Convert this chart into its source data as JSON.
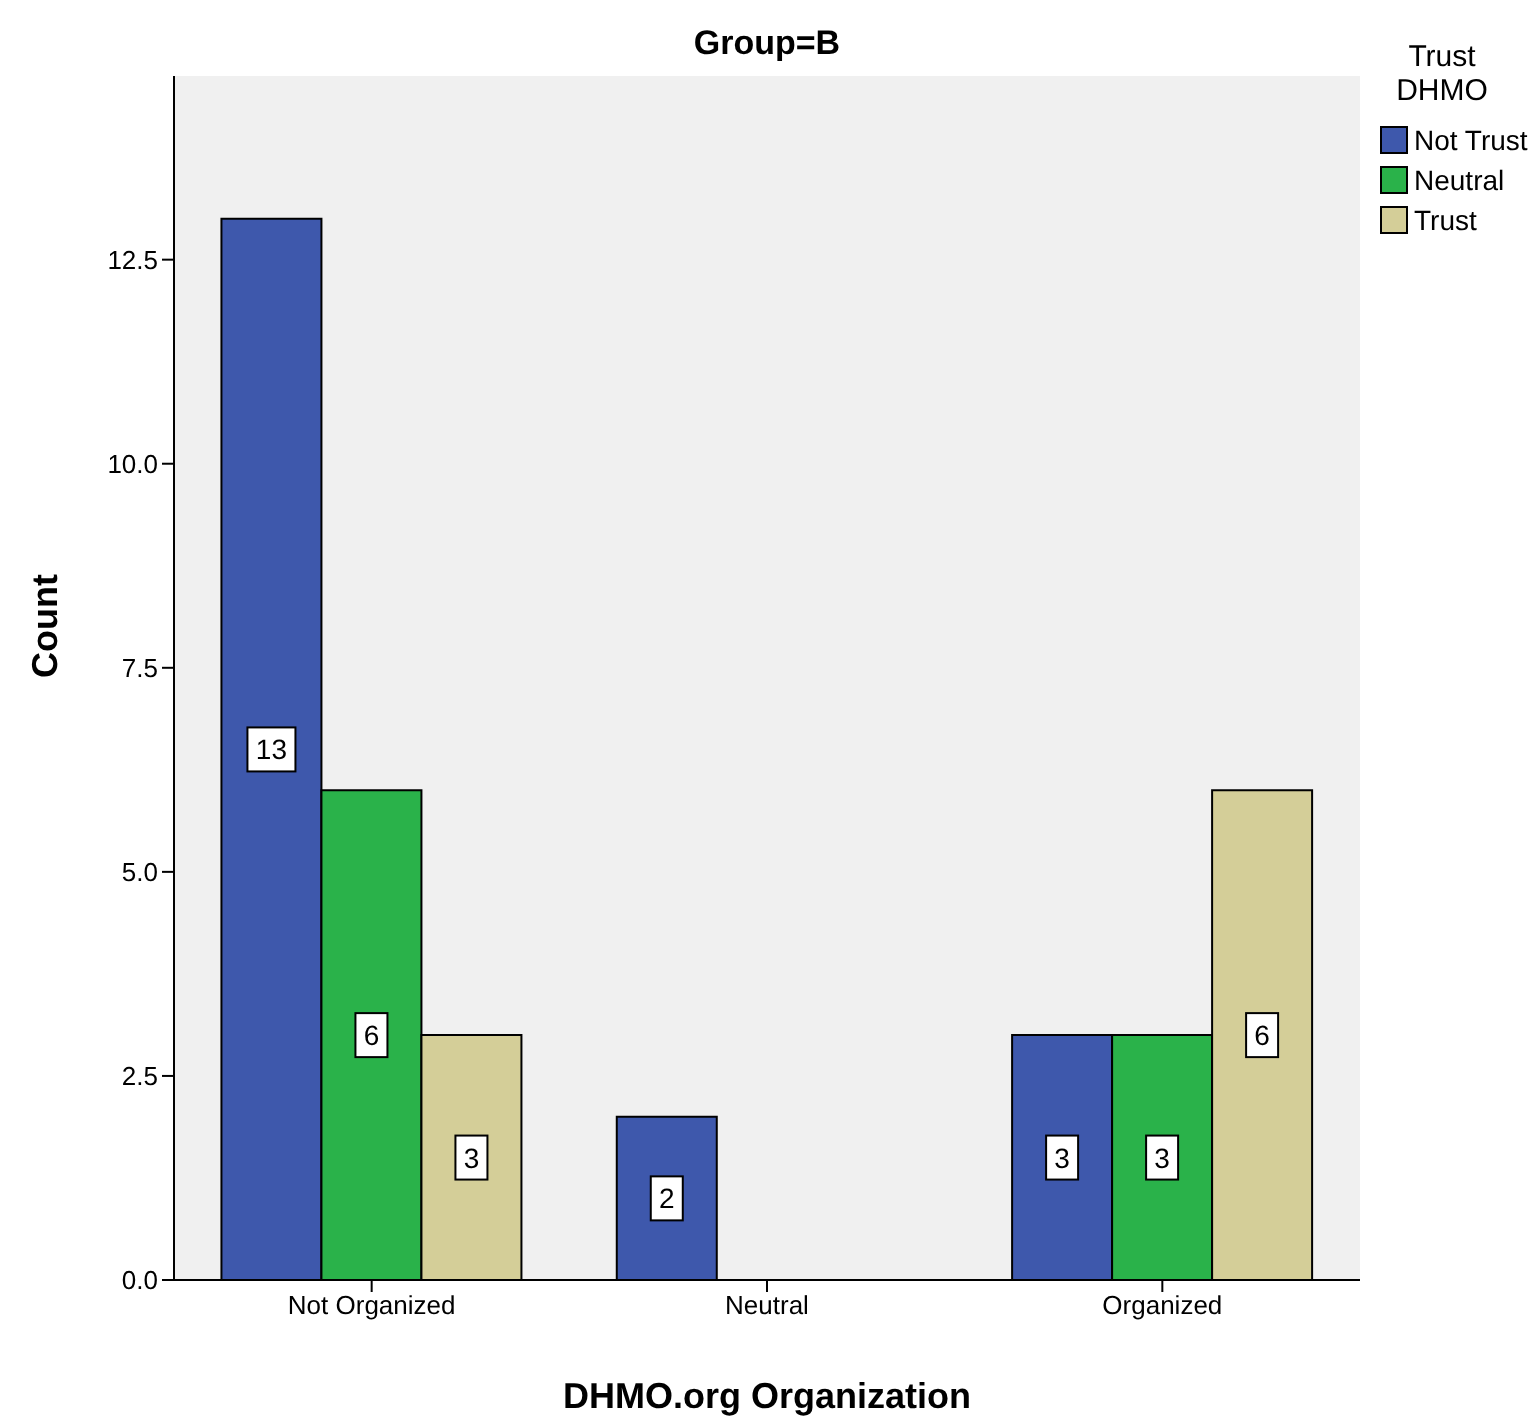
{
  "chart_data": {
    "type": "bar",
    "title": "Group=B",
    "xlabel": "DHMO.org Organization",
    "ylabel": "Count",
    "legend_title": "Trust DHMO",
    "categories": [
      "Not Organized",
      "Neutral",
      "Organized"
    ],
    "series": [
      {
        "name": "Not Trust",
        "color": "#3e58ac",
        "values": [
          13,
          2,
          3
        ]
      },
      {
        "name": "Neutral",
        "color": "#2ab24a",
        "values": [
          6,
          null,
          3
        ]
      },
      {
        "name": "Trust",
        "color": "#d4ce98",
        "values": [
          3,
          null,
          6
        ]
      }
    ],
    "ylim": [
      0,
      14.75
    ],
    "yticks": [
      {
        "value": 0,
        "label": "0.0"
      },
      {
        "value": 2.5,
        "label": "2.5"
      },
      {
        "value": 5,
        "label": "5.0"
      },
      {
        "value": 7.5,
        "label": "7.5"
      },
      {
        "value": 10,
        "label": "10.0"
      },
      {
        "value": 12.5,
        "label": "12.5"
      }
    ],
    "data_labels": true,
    "grid": false,
    "legend": "top right"
  }
}
